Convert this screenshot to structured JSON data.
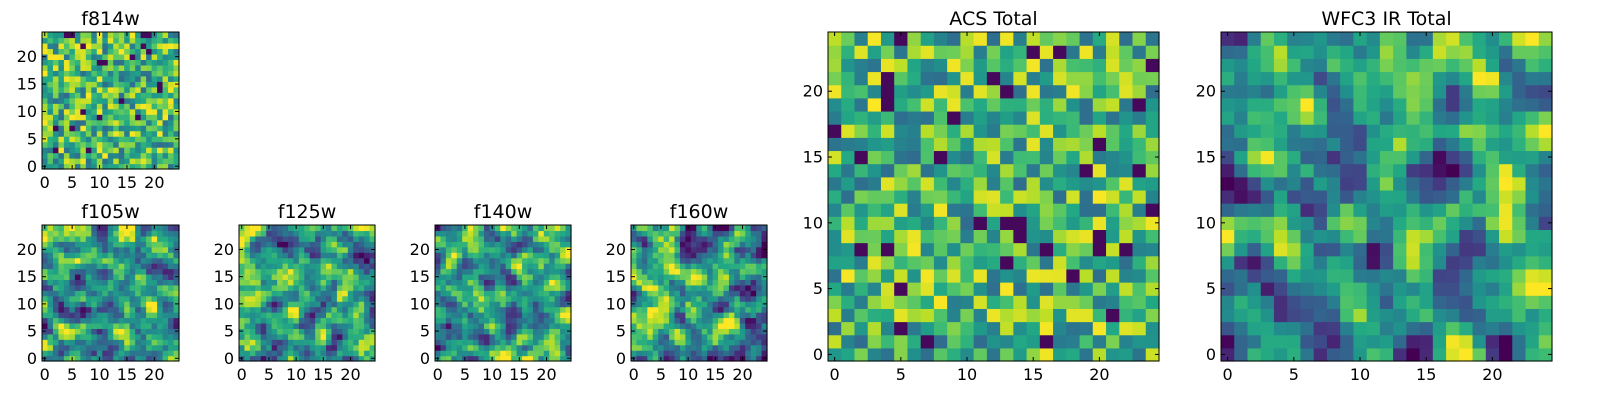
{
  "chart_data": [
    {
      "type": "heatmap",
      "title": "f814w",
      "colormap": "viridis",
      "x_ticks": [
        0,
        5,
        10,
        15,
        20
      ],
      "y_ticks": [
        0,
        5,
        10,
        15,
        20
      ],
      "xlim": [
        0,
        25
      ],
      "ylim": [
        0,
        25
      ],
      "grid_size": 25,
      "pattern_seed": 11,
      "pattern_clump": 1,
      "description_note": ""
    },
    {
      "type": "heatmap",
      "title": "f105w",
      "colormap": "viridis",
      "x_ticks": [
        0,
        5,
        10,
        15,
        20
      ],
      "y_ticks": [
        0,
        5,
        10,
        15,
        20
      ],
      "xlim": [
        0,
        25
      ],
      "ylim": [
        0,
        25
      ],
      "grid_size": 25,
      "pattern_seed": 23,
      "pattern_clump": 2,
      "description_note": ""
    },
    {
      "type": "heatmap",
      "title": "f125w",
      "colormap": "viridis",
      "x_ticks": [
        0,
        5,
        10,
        15,
        20
      ],
      "y_ticks": [
        0,
        5,
        10,
        15,
        20
      ],
      "xlim": [
        0,
        25
      ],
      "ylim": [
        0,
        25
      ],
      "grid_size": 25,
      "pattern_seed": 37,
      "pattern_clump": 2,
      "description_note": ""
    },
    {
      "type": "heatmap",
      "title": "f140w",
      "colormap": "viridis",
      "x_ticks": [
        0,
        5,
        10,
        15,
        20
      ],
      "y_ticks": [
        0,
        5,
        10,
        15,
        20
      ],
      "xlim": [
        0,
        25
      ],
      "ylim": [
        0,
        25
      ],
      "grid_size": 25,
      "pattern_seed": 41,
      "pattern_clump": 2,
      "description_note": ""
    },
    {
      "type": "heatmap",
      "title": "f160w",
      "colormap": "viridis",
      "x_ticks": [
        0,
        5,
        10,
        15,
        20
      ],
      "y_ticks": [
        0,
        5,
        10,
        15,
        20
      ],
      "xlim": [
        0,
        25
      ],
      "ylim": [
        0,
        25
      ],
      "grid_size": 25,
      "pattern_seed": 53,
      "pattern_clump": 2,
      "description_note": ""
    },
    {
      "type": "heatmap",
      "title": "ACS Total",
      "colormap": "viridis",
      "x_ticks": [
        0,
        5,
        10,
        15,
        20
      ],
      "y_ticks": [
        0,
        5,
        10,
        15,
        20
      ],
      "xlim": [
        0,
        25
      ],
      "ylim": [
        0,
        25
      ],
      "grid_size": 25,
      "pattern_seed": 67,
      "pattern_clump": 1,
      "description_note": ""
    },
    {
      "type": "heatmap",
      "title": "WFC3 IR Total",
      "colormap": "viridis",
      "x_ticks": [
        0,
        5,
        10,
        15,
        20
      ],
      "y_ticks": [
        0,
        5,
        10,
        15,
        20
      ],
      "xlim": [
        0,
        25
      ],
      "ylim": [
        0,
        25
      ],
      "grid_size": 25,
      "pattern_seed": 79,
      "pattern_clump": 2,
      "description_note": ""
    }
  ]
}
